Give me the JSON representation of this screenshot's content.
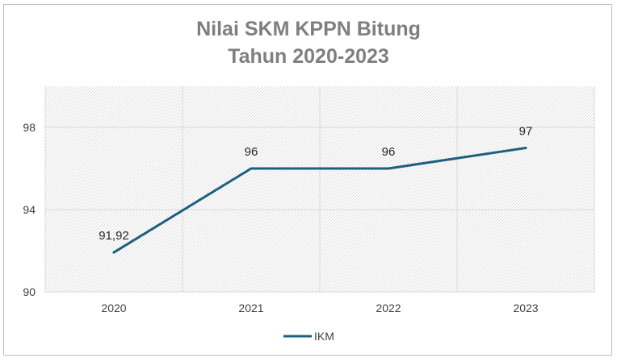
{
  "chart_data": {
    "type": "line",
    "title_lines": [
      "Nilai SKM KPPN Bitung",
      "Tahun 2020-2023"
    ],
    "categories": [
      "2020",
      "2021",
      "2022",
      "2023"
    ],
    "series": [
      {
        "name": "IKM",
        "values": [
          91.92,
          96,
          96,
          97
        ],
        "labels": [
          "91,92",
          "96",
          "96",
          "97"
        ],
        "color": "#1f5f7f"
      }
    ],
    "ylim": [
      90,
      100
    ],
    "yticks": [
      "90",
      "94",
      "98"
    ],
    "ytick_values": [
      90,
      94,
      98
    ],
    "grid": true,
    "legend_position": "bottom",
    "plot_background": "hatched-gray"
  }
}
